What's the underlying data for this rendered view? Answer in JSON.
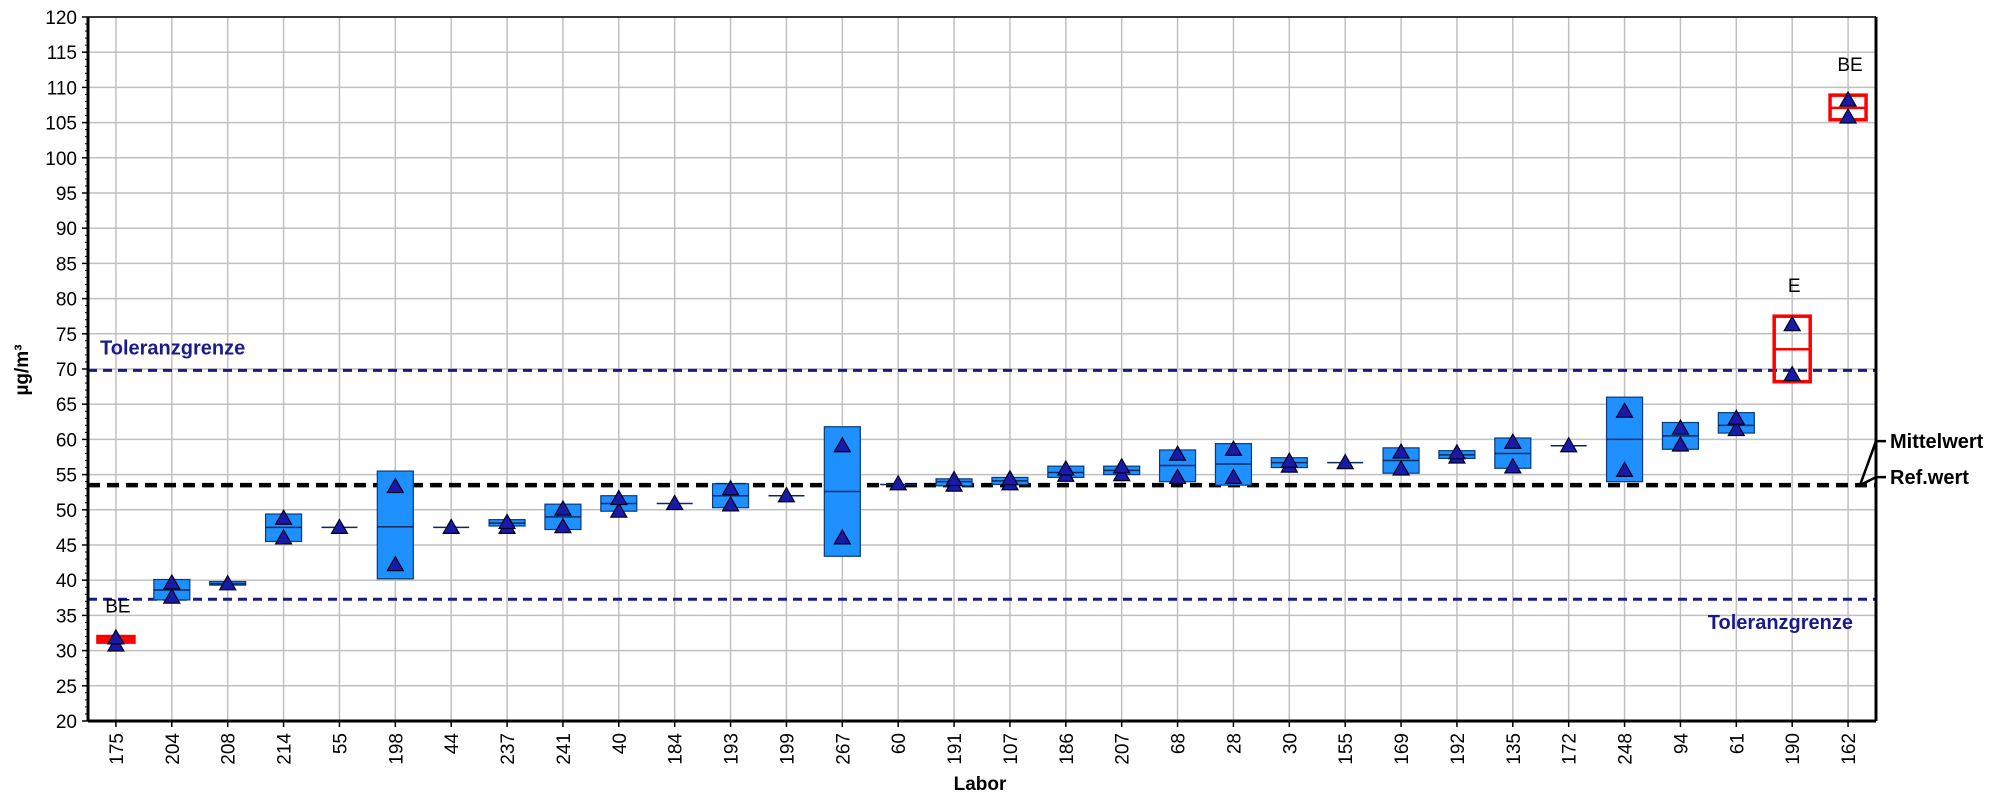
{
  "chart_data": {
    "type": "box",
    "xlabel": "Labor",
    "ylabel": "µg/m³",
    "ylim": [
      20,
      120
    ],
    "ytick_step": 5,
    "grid": true,
    "reference_value": 53.5,
    "mean_value": 53.5,
    "tolerance_upper": 69.8,
    "tolerance_lower": 37.3,
    "labels": {
      "tolerance_upper": "Toleranzgrenze",
      "tolerance_lower": "Toleranzgrenze",
      "mean": "Mittelwert",
      "ref": "Ref.wert"
    },
    "colors": {
      "box_fill": "#1e90ff",
      "box_flagged": "#ff0000",
      "marker": "#1a1aa8",
      "tolerance_line": "#1a1a8a",
      "ref_line": "#000000",
      "grid": "#c0c0c0"
    },
    "labs": [
      {
        "lab": "175",
        "low": 31.2,
        "high": 32.0,
        "median": 31.6,
        "values": [
          30.8,
          31.8
        ],
        "flag": "BE"
      },
      {
        "lab": "204",
        "low": 37.2,
        "high": 40.1,
        "median": 38.6,
        "values": [
          37.6,
          39.6
        ],
        "flag": ""
      },
      {
        "lab": "208",
        "low": 39.3,
        "high": 39.8,
        "median": 39.5,
        "values": [
          39.5
        ],
        "flag": ""
      },
      {
        "lab": "214",
        "low": 45.5,
        "high": 49.4,
        "median": 47.5,
        "values": [
          46.0,
          48.8
        ],
        "flag": ""
      },
      {
        "lab": "55",
        "low": 47.5,
        "high": 47.5,
        "median": 47.5,
        "values": [
          47.5
        ],
        "flag": ""
      },
      {
        "lab": "198",
        "low": 40.2,
        "high": 55.5,
        "median": 47.6,
        "values": [
          42.2,
          53.3
        ],
        "flag": ""
      },
      {
        "lab": "44",
        "low": 47.5,
        "high": 47.5,
        "median": 47.5,
        "values": [
          47.5
        ],
        "flag": ""
      },
      {
        "lab": "237",
        "low": 47.7,
        "high": 48.6,
        "median": 48.1,
        "values": [
          47.5,
          48.2
        ],
        "flag": ""
      },
      {
        "lab": "241",
        "low": 47.2,
        "high": 50.8,
        "median": 49.0,
        "values": [
          47.6,
          50.1
        ],
        "flag": ""
      },
      {
        "lab": "40",
        "low": 49.8,
        "high": 52.0,
        "median": 50.9,
        "values": [
          49.8,
          51.6
        ],
        "flag": ""
      },
      {
        "lab": "184",
        "low": 50.9,
        "high": 50.9,
        "median": 50.9,
        "values": [
          50.9
        ],
        "flag": ""
      },
      {
        "lab": "193",
        "low": 50.3,
        "high": 53.7,
        "median": 52.0,
        "values": [
          50.7,
          53.0
        ],
        "flag": ""
      },
      {
        "lab": "199",
        "low": 52.0,
        "high": 52.0,
        "median": 52.0,
        "values": [
          52.0
        ],
        "flag": ""
      },
      {
        "lab": "267",
        "low": 43.4,
        "high": 61.8,
        "median": 52.6,
        "values": [
          46.0,
          59.1
        ],
        "flag": ""
      },
      {
        "lab": "60",
        "low": 53.6,
        "high": 53.6,
        "median": 53.6,
        "values": [
          53.7
        ],
        "flag": ""
      },
      {
        "lab": "191",
        "low": 53.4,
        "high": 54.4,
        "median": 54.0,
        "values": [
          53.5,
          54.3
        ],
        "flag": ""
      },
      {
        "lab": "107",
        "low": 53.6,
        "high": 54.6,
        "median": 54.1,
        "values": [
          53.7,
          54.4
        ],
        "flag": ""
      },
      {
        "lab": "186",
        "low": 54.6,
        "high": 56.2,
        "median": 55.3,
        "values": [
          54.9,
          55.8
        ],
        "flag": ""
      },
      {
        "lab": "207",
        "low": 55.0,
        "high": 56.2,
        "median": 55.6,
        "values": [
          55.0,
          56.1
        ],
        "flag": ""
      },
      {
        "lab": "68",
        "low": 54.0,
        "high": 58.5,
        "median": 56.3,
        "values": [
          54.6,
          57.9
        ],
        "flag": ""
      },
      {
        "lab": "28",
        "low": 53.5,
        "high": 59.4,
        "median": 56.5,
        "values": [
          54.6,
          58.6
        ],
        "flag": ""
      },
      {
        "lab": "30",
        "low": 56.0,
        "high": 57.4,
        "median": 56.7,
        "values": [
          56.2,
          56.9
        ],
        "flag": ""
      },
      {
        "lab": "155",
        "low": 56.7,
        "high": 56.7,
        "median": 56.7,
        "values": [
          56.7
        ],
        "flag": ""
      },
      {
        "lab": "169",
        "low": 55.2,
        "high": 58.8,
        "median": 57.0,
        "values": [
          55.8,
          58.2
        ],
        "flag": ""
      },
      {
        "lab": "192",
        "low": 57.3,
        "high": 58.4,
        "median": 57.8,
        "values": [
          57.5,
          58.1
        ],
        "flag": ""
      },
      {
        "lab": "135",
        "low": 55.9,
        "high": 60.2,
        "median": 58.0,
        "values": [
          56.1,
          59.6
        ],
        "flag": ""
      },
      {
        "lab": "172",
        "low": 59.1,
        "high": 59.1,
        "median": 59.1,
        "values": [
          59.1
        ],
        "flag": ""
      },
      {
        "lab": "248",
        "low": 54.0,
        "high": 66.0,
        "median": 60.0,
        "values": [
          55.6,
          64.0
        ],
        "flag": ""
      },
      {
        "lab": "94",
        "low": 58.6,
        "high": 62.4,
        "median": 60.5,
        "values": [
          59.2,
          61.6
        ],
        "flag": ""
      },
      {
        "lab": "61",
        "low": 60.9,
        "high": 63.8,
        "median": 62.0,
        "values": [
          61.4,
          63.0
        ],
        "flag": ""
      },
      {
        "lab": "190",
        "low": 68.2,
        "high": 77.5,
        "median": 72.8,
        "values": [
          69.2,
          76.3
        ],
        "flag": "E"
      },
      {
        "lab": "162",
        "low": 105.4,
        "high": 108.9,
        "median": 107.1,
        "values": [
          105.8,
          108.2
        ],
        "flag": "BE"
      }
    ]
  }
}
